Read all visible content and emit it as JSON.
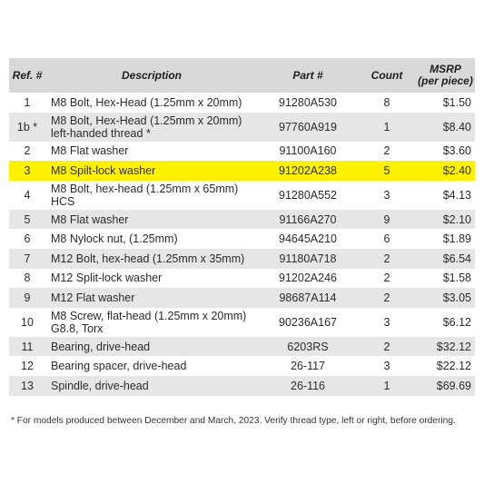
{
  "headers": {
    "ref": "Ref. #",
    "description": "Description",
    "part": "Part #",
    "count": "Count",
    "msrp_line1": "MSRP",
    "msrp_line2": "(per piece)"
  },
  "rows": [
    {
      "ref": "1",
      "description": "M8 Bolt, Hex-Head (1.25mm x 20mm)",
      "part": "91280A530",
      "count": "8",
      "msrp": "$1.50"
    },
    {
      "ref": "1b *",
      "description": "M8 Bolt, Hex-Head (1.25mm x 20mm) left-handed thread *",
      "part": "97760A919",
      "count": "1",
      "msrp": "$8.40"
    },
    {
      "ref": "2",
      "description": "M8 Flat washer",
      "part": "91100A160",
      "count": "2",
      "msrp": "$3.60"
    },
    {
      "ref": "3",
      "description": "M8 Spilt-lock washer",
      "part": "91202A238",
      "count": "5",
      "msrp": "$2.40"
    },
    {
      "ref": "4",
      "description": "M8 Bolt, hex-head (1.25mm x 65mm) HCS",
      "part": "91280A552",
      "count": "3",
      "msrp": "$4.13"
    },
    {
      "ref": "5",
      "description": "M8 Flat washer",
      "part": "91166A270",
      "count": "9",
      "msrp": "$2.10"
    },
    {
      "ref": "6",
      "description": "M8 Nylock nut, (1.25mm)",
      "part": "94645A210",
      "count": "6",
      "msrp": "$1.89"
    },
    {
      "ref": "7",
      "description": "M12 Bolt, hex-head (1.25mm x 35mm)",
      "part": "91180A718",
      "count": "2",
      "msrp": "$6.54"
    },
    {
      "ref": "8",
      "description": "M12 Split-lock washer",
      "part": "91202A246",
      "count": "2",
      "msrp": "$1.58"
    },
    {
      "ref": "9",
      "description": "M12 Flat washer",
      "part": "98687A114",
      "count": "2",
      "msrp": "$3.05"
    },
    {
      "ref": "10",
      "description": "M8 Screw, flat-head (1.25mm x 20mm) G8.8, Torx",
      "part": "90236A167",
      "count": "3",
      "msrp": "$6.12"
    },
    {
      "ref": "11",
      "description": "Bearing, drive-head",
      "part": "6203RS",
      "count": "2",
      "msrp": "$32.12"
    },
    {
      "ref": "12",
      "description": "Bearing spacer, drive-head",
      "part": "26-117",
      "count": "3",
      "msrp": "$22.12"
    },
    {
      "ref": "13",
      "description": "Spindle, drive-head",
      "part": "26-116",
      "count": "1",
      "msrp": "$69.69"
    }
  ],
  "highlighted_row_ref": "3",
  "colors": {
    "header_bg": "#d9d9d9",
    "stripe_bg": "#e6e6e6",
    "highlight_bg": "#fff200"
  },
  "footnote": "* For models produced between December and March, 2023. Verify thread type, left or right, before ordering."
}
